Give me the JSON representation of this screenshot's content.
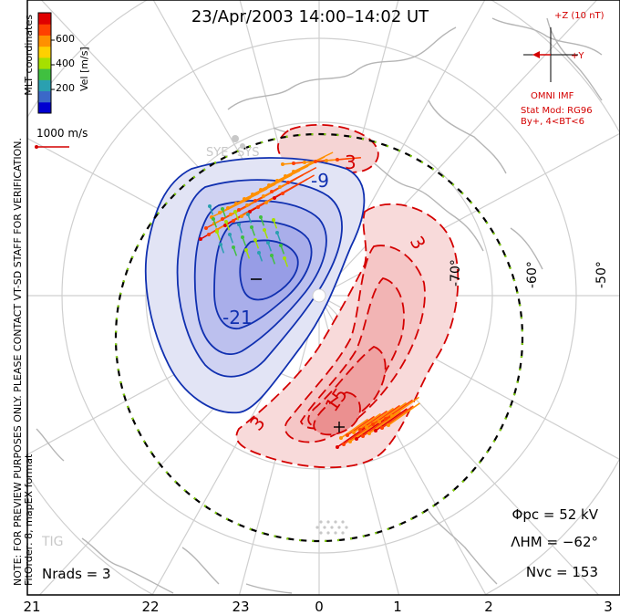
{
  "title": "23/Apr/2003 14:00–14:02 UT",
  "colorbar": {
    "label": "Vel [m/s]",
    "ticks": [
      "600",
      "400",
      "200"
    ],
    "colors": [
      "#0000d0",
      "#3b68c8",
      "#2aa0b0",
      "#40c040",
      "#a6e000",
      "#ffd000",
      "#ff9000",
      "#ff4000",
      "#e00000"
    ]
  },
  "reference_vector": "1000 m/s",
  "imf": {
    "z_label": "+Z (10 nT)",
    "y_label": "+Y",
    "source": "OMNI IMF",
    "model": "Stat Mod: RG96",
    "condition": "By+, 4<BT<6"
  },
  "contour_labels": {
    "neg_a": "-9",
    "neg_b": "-21",
    "neg_c": "−",
    "pos_a": "3",
    "pos_b": "3",
    "pos_c": "15",
    "pos_d": "3"
  },
  "latitudes": [
    "-70°",
    "-60°",
    "-50°"
  ],
  "mlt_labels": [
    "21",
    "22",
    "23",
    "0",
    "1",
    "2",
    "3"
  ],
  "side_note": {
    "line1": "NOTE: FOR PREVIEW PURPOSES ONLY. PLEASE CONTACT VT-SD STAFF FOR VERIFICATION.",
    "line2": "FitOrder: 8, mapEX format",
    "line3": "MLT coordinates"
  },
  "stations": {
    "sye": "SYE",
    "sys": "SYS",
    "tig": "TIG"
  },
  "stats": {
    "phi": "Φpc = 52 kV",
    "lambda": "ΛHM = −62°",
    "nvc": "Nvc = 153",
    "nrads": "Nrads = 3"
  }
}
